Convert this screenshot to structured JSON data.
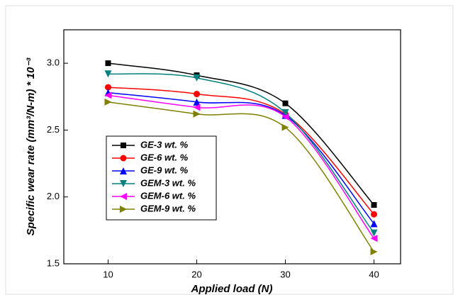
{
  "chart_data": {
    "type": "line",
    "x_label": "Applied load (N)",
    "y_label": "Specific wear rate (mm³/N-m) * 10⁻³",
    "x": [
      10,
      20,
      30,
      40
    ],
    "xlim": [
      5,
      43
    ],
    "xticks": [
      10,
      20,
      30,
      40
    ],
    "ylim": [
      1.5,
      3.25
    ],
    "yticks": [
      {
        "value": 1.5,
        "label": "1.5"
      },
      {
        "value": 2.0,
        "label": "2.0"
      },
      {
        "value": 2.5,
        "label": "2.5"
      },
      {
        "value": 3.0,
        "label": "3.0"
      }
    ],
    "legend": "lower left",
    "series": [
      {
        "name": "GE-3 wt. %",
        "color": "#000000",
        "marker": "square",
        "values": [
          3.0,
          2.91,
          2.7,
          1.94
        ]
      },
      {
        "name": "GE-6 wt. %",
        "color": "#ff0000",
        "marker": "circle",
        "values": [
          2.82,
          2.77,
          2.62,
          1.87
        ]
      },
      {
        "name": "GE-9 wt. %",
        "color": "#0000ff",
        "marker": "triangle-up",
        "values": [
          2.78,
          2.71,
          2.61,
          1.8
        ]
      },
      {
        "name": "GEM-3 wt. %",
        "color": "#008080",
        "marker": "triangle-down",
        "values": [
          2.92,
          2.89,
          2.63,
          1.73
        ]
      },
      {
        "name": "GEM-6 wt. %",
        "color": "#ff00ff",
        "marker": "triangle-left",
        "values": [
          2.76,
          2.67,
          2.6,
          1.69
        ]
      },
      {
        "name": "GEM-9 wt. %",
        "color": "#808000",
        "marker": "triangle-right",
        "values": [
          2.71,
          2.62,
          2.52,
          1.59
        ]
      }
    ]
  }
}
